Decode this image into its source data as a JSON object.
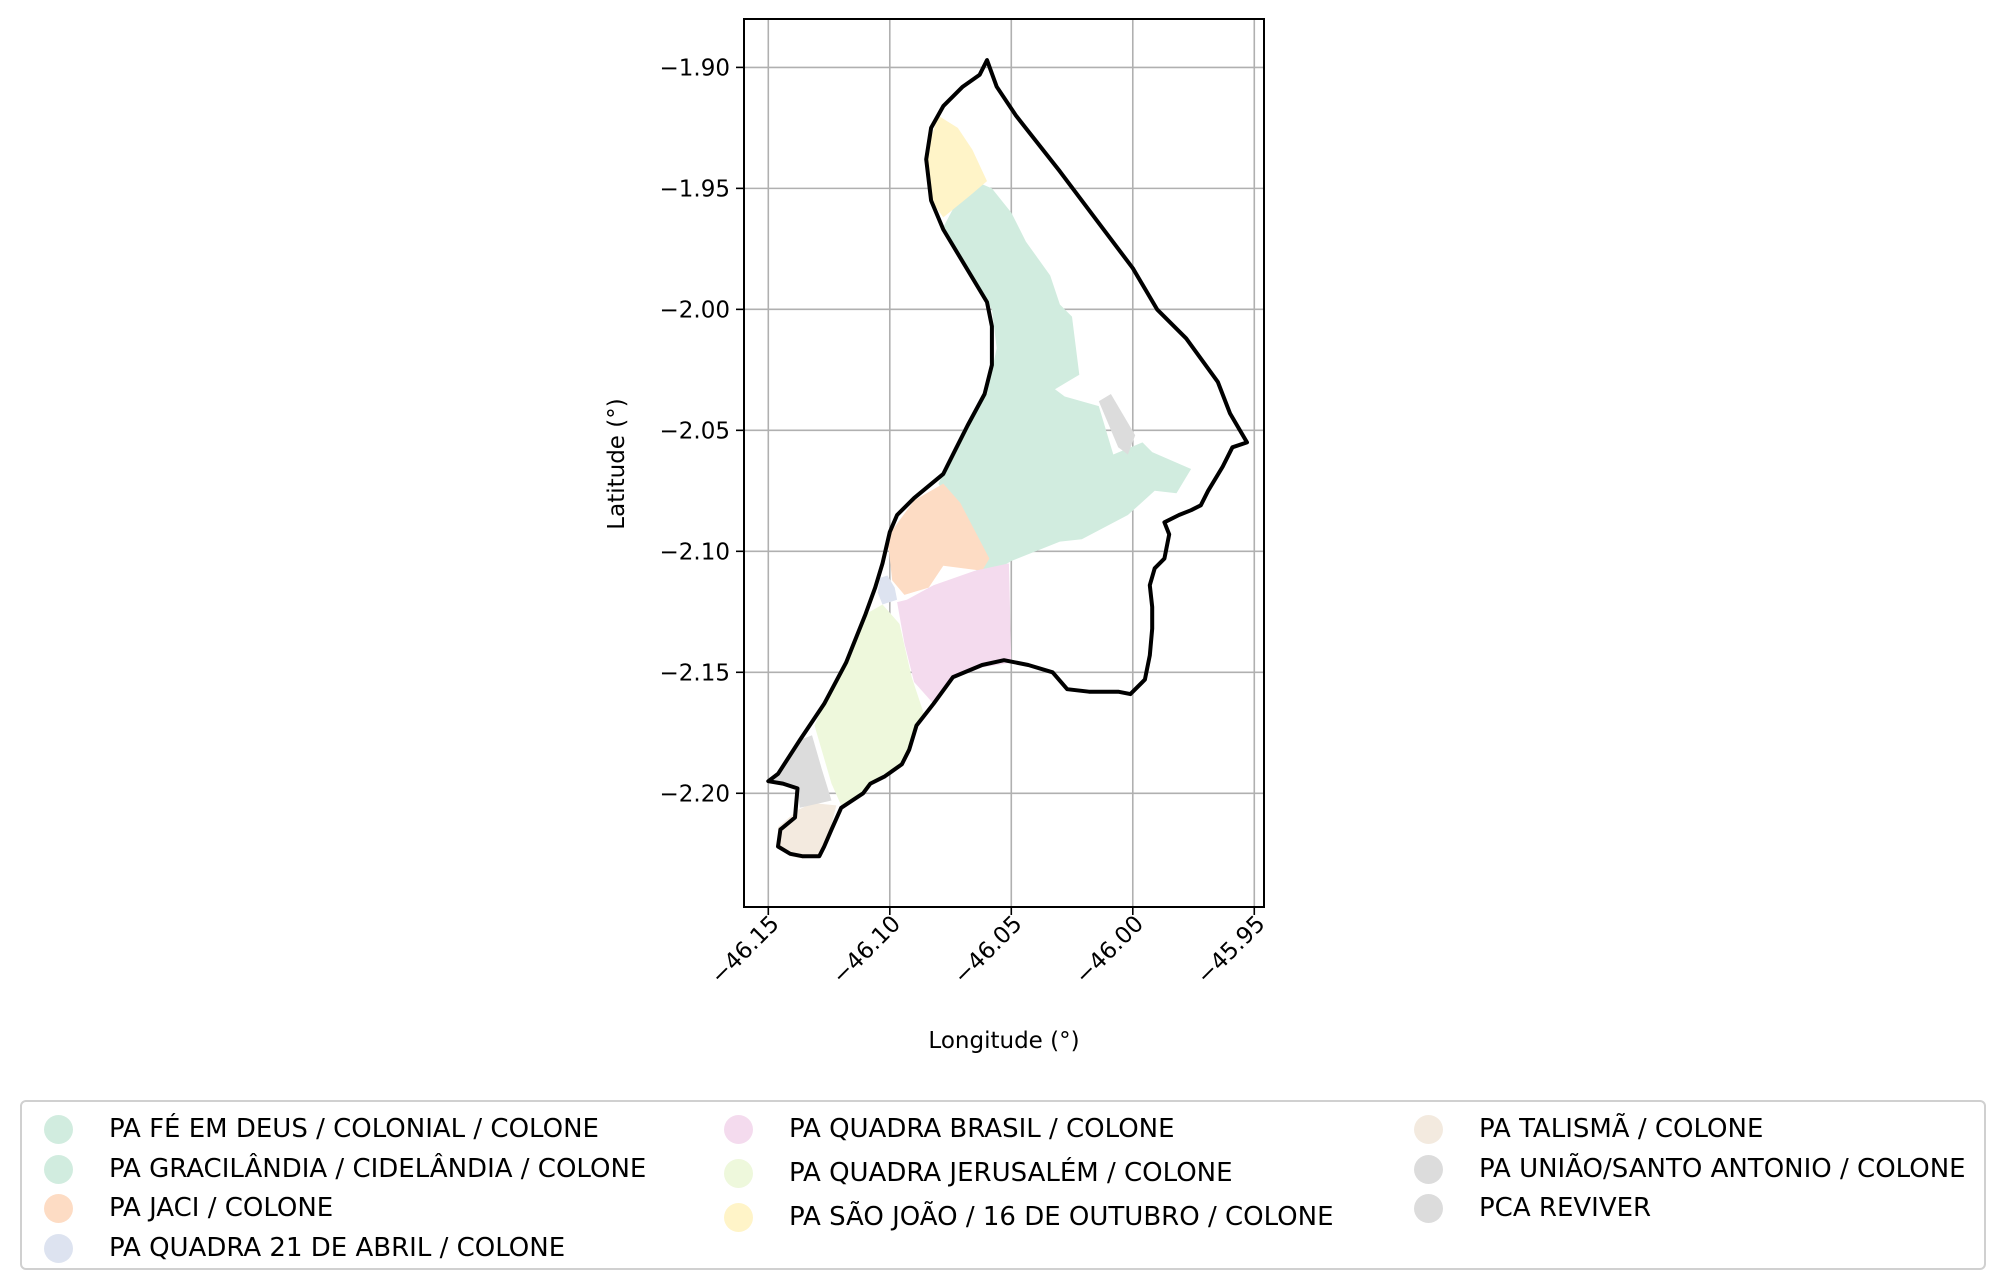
{
  "chart_data": {
    "type": "map",
    "title": "",
    "xlabel": "Longitude (°)",
    "ylabel": "Latitude (°)",
    "xlim": [
      -46.16,
      -45.946
    ],
    "ylim": [
      -2.247,
      -1.88
    ],
    "x_ticks": [
      -46.15,
      -46.1,
      -46.05,
      -46.0,
      -45.95
    ],
    "x_tick_labels": [
      "−46.15",
      "−46.10",
      "−46.05",
      "−46.00",
      "−45.95"
    ],
    "y_ticks": [
      -1.9,
      -1.95,
      -2.0,
      -2.05,
      -2.1,
      -2.15,
      -2.2
    ],
    "y_tick_labels": [
      "−1.90",
      "−1.95",
      "−2.00",
      "−2.05",
      "−2.10",
      "−2.15",
      "−2.20"
    ],
    "grid": true,
    "legend_position": "bottom",
    "boundary": {
      "color": "#000000",
      "points": [
        [
          -46.06,
          -1.897
        ],
        [
          -46.063,
          -1.903
        ],
        [
          -46.07,
          -1.908
        ],
        [
          -46.078,
          -1.916
        ],
        [
          -46.083,
          -1.925
        ],
        [
          -46.085,
          -1.938
        ],
        [
          -46.083,
          -1.955
        ],
        [
          -46.078,
          -1.967
        ],
        [
          -46.066,
          -1.987
        ],
        [
          -46.06,
          -1.997
        ],
        [
          -46.058,
          -2.007
        ],
        [
          -46.058,
          -2.023
        ],
        [
          -46.061,
          -2.035
        ],
        [
          -46.068,
          -2.048
        ],
        [
          -46.073,
          -2.058
        ],
        [
          -46.078,
          -2.068
        ],
        [
          -46.09,
          -2.078
        ],
        [
          -46.097,
          -2.085
        ],
        [
          -46.1,
          -2.092
        ],
        [
          -46.103,
          -2.105
        ],
        [
          -46.106,
          -2.115
        ],
        [
          -46.11,
          -2.126
        ],
        [
          -46.118,
          -2.146
        ],
        [
          -46.127,
          -2.163
        ],
        [
          -46.137,
          -2.178
        ],
        [
          -46.146,
          -2.192
        ],
        [
          -46.15,
          -2.195
        ],
        [
          -46.144,
          -2.196
        ],
        [
          -46.138,
          -2.198
        ],
        [
          -46.139,
          -2.21
        ],
        [
          -46.145,
          -2.215
        ],
        [
          -46.146,
          -2.222
        ],
        [
          -46.141,
          -2.225
        ],
        [
          -46.136,
          -2.226
        ],
        [
          -46.129,
          -2.226
        ],
        [
          -46.127,
          -2.222
        ],
        [
          -46.124,
          -2.215
        ],
        [
          -46.12,
          -2.206
        ],
        [
          -46.111,
          -2.2
        ],
        [
          -46.108,
          -2.196
        ],
        [
          -46.102,
          -2.193
        ],
        [
          -46.095,
          -2.188
        ],
        [
          -46.092,
          -2.182
        ],
        [
          -46.089,
          -2.172
        ],
        [
          -46.082,
          -2.163
        ],
        [
          -46.074,
          -2.152
        ],
        [
          -46.062,
          -2.147
        ],
        [
          -46.053,
          -2.145
        ],
        [
          -46.043,
          -2.147
        ],
        [
          -46.033,
          -2.15
        ],
        [
          -46.027,
          -2.157
        ],
        [
          -46.018,
          -2.158
        ],
        [
          -46.006,
          -2.158
        ],
        [
          -46.001,
          -2.159
        ],
        [
          -45.995,
          -2.153
        ],
        [
          -45.993,
          -2.143
        ],
        [
          -45.992,
          -2.132
        ],
        [
          -45.992,
          -2.123
        ],
        [
          -45.993,
          -2.114
        ],
        [
          -45.991,
          -2.107
        ],
        [
          -45.987,
          -2.103
        ],
        [
          -45.985,
          -2.093
        ],
        [
          -45.987,
          -2.088
        ],
        [
          -45.981,
          -2.085
        ],
        [
          -45.976,
          -2.083
        ],
        [
          -45.972,
          -2.081
        ],
        [
          -45.969,
          -2.075
        ],
        [
          -45.963,
          -2.065
        ],
        [
          -45.959,
          -2.057
        ],
        [
          -45.953,
          -2.055
        ],
        [
          -45.96,
          -2.043
        ],
        [
          -45.965,
          -2.03
        ],
        [
          -45.978,
          -2.012
        ],
        [
          -45.99,
          -2.0
        ],
        [
          -46.0,
          -1.983
        ],
        [
          -46.015,
          -1.963
        ],
        [
          -46.03,
          -1.943
        ],
        [
          -46.048,
          -1.92
        ],
        [
          -46.056,
          -1.908
        ]
      ]
    },
    "regions": [
      {
        "name": "PA FÉ EM DEUS / COLONIAL / COLONE",
        "color": "#d1ecdf",
        "polygons": []
      },
      {
        "name": "PA GRACILÂNDIA / CIDELÂNDIA / COLONE",
        "color": "#d1ecdf",
        "polygons": [
          [
            [
              -46.065,
              -1.947
            ],
            [
              -46.058,
              -1.95
            ],
            [
              -46.05,
              -1.96
            ],
            [
              -46.044,
              -1.972
            ],
            [
              -46.034,
              -1.986
            ],
            [
              -46.03,
              -1.998
            ],
            [
              -46.025,
              -2.003
            ],
            [
              -46.022,
              -2.027
            ],
            [
              -46.032,
              -2.033
            ],
            [
              -46.028,
              -2.036
            ],
            [
              -46.014,
              -2.04
            ],
            [
              -46.008,
              -2.06
            ],
            [
              -45.996,
              -2.055
            ],
            [
              -45.992,
              -2.059
            ],
            [
              -45.976,
              -2.066
            ],
            [
              -45.982,
              -2.076
            ],
            [
              -45.991,
              -2.075
            ],
            [
              -46.002,
              -2.085
            ],
            [
              -46.021,
              -2.095
            ],
            [
              -46.03,
              -2.096
            ],
            [
              -46.05,
              -2.104
            ],
            [
              -46.063,
              -2.112
            ],
            [
              -46.072,
              -2.085
            ],
            [
              -46.08,
              -2.072
            ],
            [
              -46.07,
              -2.05
            ],
            [
              -46.06,
              -2.035
            ],
            [
              -46.056,
              -2.016
            ],
            [
              -46.058,
              -2.0
            ],
            [
              -46.068,
              -1.985
            ],
            [
              -46.078,
              -1.966
            ],
            [
              -46.07,
              -1.951
            ]
          ]
        ]
      },
      {
        "name": "PA JACI / COLONE",
        "color": "#fddcc4",
        "polygons": [
          [
            [
              -46.078,
              -2.072
            ],
            [
              -46.071,
              -2.08
            ],
            [
              -46.059,
              -2.103
            ],
            [
              -46.062,
              -2.108
            ],
            [
              -46.078,
              -2.106
            ],
            [
              -46.084,
              -2.115
            ],
            [
              -46.094,
              -2.118
            ],
            [
              -46.099,
              -2.112
            ],
            [
              -46.101,
              -2.094
            ],
            [
              -46.09,
              -2.079
            ]
          ]
        ]
      },
      {
        "name": "PA QUADRA 21 DE ABRIL / COLONE",
        "color": "#dde3f0",
        "polygons": [
          [
            [
              -46.101,
              -2.11
            ],
            [
              -46.098,
              -2.115
            ],
            [
              -46.097,
              -2.12
            ],
            [
              -46.103,
              -2.122
            ],
            [
              -46.105,
              -2.117
            ],
            [
              -46.104,
              -2.111
            ]
          ]
        ]
      },
      {
        "name": "PA QUADRA BRASIL  / COLONE",
        "color": "#f4dbee",
        "polygons": [
          [
            [
              -46.097,
              -2.121
            ],
            [
              -46.093,
              -2.12
            ],
            [
              -46.082,
              -2.114
            ],
            [
              -46.065,
              -2.108
            ],
            [
              -46.051,
              -2.105
            ],
            [
              -46.05,
              -2.146
            ],
            [
              -46.062,
              -2.148
            ],
            [
              -46.075,
              -2.153
            ],
            [
              -46.082,
              -2.163
            ],
            [
              -46.09,
              -2.154
            ],
            [
              -46.094,
              -2.138
            ]
          ]
        ]
      },
      {
        "name": "PA QUADRA JERUSALÉM / COLONE",
        "color": "#eef8dc",
        "polygons": [
          [
            [
              -46.103,
              -2.122
            ],
            [
              -46.11,
              -2.126
            ],
            [
              -46.118,
              -2.146
            ],
            [
              -46.127,
              -2.163
            ],
            [
              -46.131,
              -2.172
            ],
            [
              -46.124,
              -2.196
            ],
            [
              -46.12,
              -2.205
            ],
            [
              -46.111,
              -2.2
            ],
            [
              -46.104,
              -2.193
            ],
            [
              -46.095,
              -2.188
            ],
            [
              -46.092,
              -2.18
            ],
            [
              -46.086,
              -2.167
            ],
            [
              -46.091,
              -2.152
            ],
            [
              -46.096,
              -2.13
            ]
          ]
        ]
      },
      {
        "name": "PA SÃO JOÃO / 16 DE OUTUBRO / COLONE",
        "color": "#fff4c8",
        "polygons": [
          [
            [
              -46.08,
              -1.92
            ],
            [
              -46.085,
              -1.935
            ],
            [
              -46.085,
              -1.945
            ],
            [
              -46.083,
              -1.955
            ],
            [
              -46.078,
              -1.962
            ],
            [
              -46.067,
              -1.953
            ],
            [
              -46.06,
              -1.947
            ],
            [
              -46.066,
              -1.934
            ],
            [
              -46.072,
              -1.925
            ]
          ]
        ]
      },
      {
        "name": "PA TALISMÃ / COLONE",
        "color": "#f3eadf",
        "polygons": [
          [
            [
              -46.138,
              -2.207
            ],
            [
              -46.146,
              -2.214
            ],
            [
              -46.146,
              -2.222
            ],
            [
              -46.141,
              -2.226
            ],
            [
              -46.136,
              -2.227
            ],
            [
              -46.129,
              -2.226
            ],
            [
              -46.127,
              -2.221
            ],
            [
              -46.124,
              -2.213
            ],
            [
              -46.122,
              -2.205
            ],
            [
              -46.132,
              -2.204
            ]
          ]
        ]
      },
      {
        "name": "PA UNIÃO/SANTO ANTONIO / COLONE",
        "color": "#dcdcdc",
        "polygons": [
          [
            [
              -46.137,
              -2.178
            ],
            [
              -46.146,
              -2.192
            ],
            [
              -46.149,
              -2.195
            ],
            [
              -46.138,
              -2.198
            ],
            [
              -46.137,
              -2.206
            ],
            [
              -46.124,
              -2.203
            ],
            [
              -46.128,
              -2.19
            ],
            [
              -46.132,
              -2.176
            ]
          ]
        ]
      },
      {
        "name": "PCA REVIVER",
        "color": "#dcdcdc",
        "polygons": [
          [
            [
              -46.014,
              -2.038
            ],
            [
              -46.009,
              -2.035
            ],
            [
              -45.999,
              -2.052
            ],
            [
              -46.002,
              -2.06
            ],
            [
              -46.006,
              -2.057
            ]
          ]
        ]
      }
    ]
  }
}
